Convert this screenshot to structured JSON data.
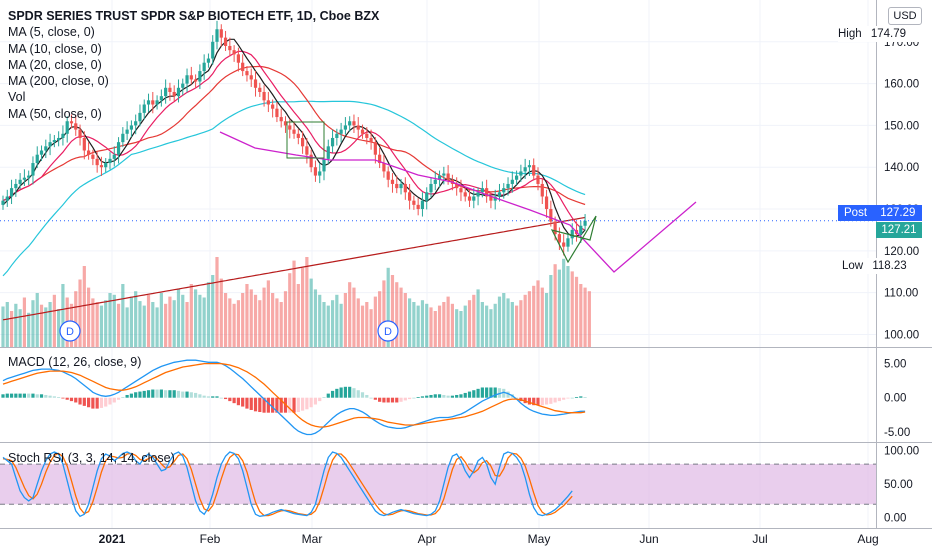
{
  "header": {
    "title": "SPDR SERIES TRUST SPDR S&P BIOTECH ETF, 1D, Cboe BZX",
    "indicators": [
      "MA (5, close, 0)",
      "MA (10, close, 0)",
      "MA (20, close, 0)",
      "MA (200, close, 0)",
      "Vol",
      "MA (50, close, 0)"
    ]
  },
  "currency_button": "USD",
  "macd_label": "MACD (12, 26, close, 9)",
  "stoch_label": "Stoch RSI (3, 3, 14, 14, close)",
  "badges": {
    "high": {
      "label": "High",
      "value": "174.79"
    },
    "post": {
      "label": "Post",
      "value": "127.29"
    },
    "last": {
      "value": "127.21"
    },
    "low": {
      "label": "Low",
      "value": "118.23"
    }
  },
  "colors": {
    "up": "#26a69a",
    "down": "#ef5350",
    "ma5": "#1e1e1e",
    "ma10": "#e91e63",
    "ma20": "#e53935",
    "ma200": "#b71c1c",
    "ma50": "#26c6da",
    "pattern_line": "#cc22cc",
    "pattern_triangle": "#2e7d32",
    "macd": "#2196f3",
    "signal": "#ff6d00",
    "stoch_k": "#2196f3",
    "stoch_d": "#ff6d00",
    "stoch_band": "#e1bee7",
    "post": "#2962ff"
  },
  "chart_data": [
    {
      "type": "candlestick",
      "title": "SPDR SERIES TRUST SPDR S&P BIOTECH ETF, 1D, Cboe BZX",
      "x_ticks": [
        "2021",
        "Feb",
        "Mar",
        "Apr",
        "May",
        "Jun",
        "Jul",
        "Aug"
      ],
      "y_ticks": [
        100,
        110,
        120,
        130,
        140,
        150,
        160,
        170
      ],
      "ylim": [
        97,
        180
      ],
      "high": 174.79,
      "low": 118.23,
      "last": 127.21,
      "post": 127.29,
      "dividend_markers": [
        "D",
        "D"
      ],
      "close": [
        132,
        133,
        135,
        136,
        137,
        137.5,
        138,
        141,
        143,
        144,
        145,
        146,
        146.5,
        147,
        148,
        151,
        150.5,
        149,
        147,
        144,
        143,
        142,
        140.5,
        140,
        141,
        142,
        143,
        146,
        148,
        149,
        150,
        151,
        153,
        155,
        156,
        155,
        156,
        157,
        159,
        158,
        157,
        159,
        160,
        162,
        161,
        160.5,
        163,
        165,
        166,
        170,
        173,
        171,
        169,
        168,
        167,
        165,
        163,
        162,
        161,
        159,
        158,
        156,
        155,
        154,
        152,
        151,
        150,
        149,
        148,
        147,
        145,
        143,
        140,
        138,
        139,
        142,
        145,
        147,
        148,
        149,
        150,
        151,
        150,
        149,
        148,
        147,
        146,
        143,
        141,
        139,
        137,
        136,
        135,
        136,
        134,
        132,
        131,
        130,
        132,
        134,
        136,
        137,
        138,
        138.5,
        137,
        136,
        135,
        134,
        133,
        132,
        133,
        134,
        135,
        133,
        132,
        133,
        134,
        135,
        136,
        137,
        138,
        139,
        140,
        140.5,
        138,
        136,
        133,
        130,
        127,
        124,
        122,
        121,
        123,
        125,
        124,
        126,
        127.2
      ],
      "ma5": [
        131,
        132,
        133,
        134,
        135.5,
        136.5,
        137.3,
        138.5,
        140.5,
        142,
        143.5,
        145,
        145.8,
        146.5,
        147.2,
        148.6,
        149.6,
        149.7,
        149.3,
        147.9,
        146.3,
        144.7,
        142.9,
        141.4,
        141,
        141.3,
        141.5,
        142.4,
        143.9,
        145.4,
        147.2,
        148.8,
        150.2,
        151.6,
        153,
        154,
        155,
        155.8,
        156.6,
        157,
        157,
        157.8,
        158.6,
        159.2,
        159.8,
        160.9,
        161.4,
        162.4,
        163.1,
        164.9,
        167.4,
        169,
        170,
        170.6,
        170.6,
        169.2,
        167.6,
        166,
        164.6,
        163,
        161.6,
        160,
        158.8,
        157.4,
        155.8,
        154.4,
        153.2,
        151.6,
        150.6,
        149.4,
        148.2,
        146.4,
        144.6,
        142.6,
        141,
        140.4,
        140.8,
        141.8,
        143.6,
        145.6,
        147.4,
        148.8,
        149.6,
        149.8,
        149.6,
        149,
        148,
        146.6,
        145,
        143.2,
        141.2,
        139.2,
        137.6,
        136.6,
        135.6,
        134.6,
        133.6,
        132.8,
        132.2,
        131.8,
        132.6,
        133.8,
        135.4,
        136.8,
        137.3,
        137.1,
        136.7,
        136.1,
        135,
        134,
        133.5,
        133.6,
        133.4,
        133.2,
        133.4,
        133.4,
        133,
        133.2,
        133.8,
        134.8,
        135.8,
        137,
        138,
        138.9,
        139.2,
        139,
        138,
        136.3,
        133.6,
        130.4,
        127.9,
        125.6,
        124.2,
        123.4,
        123.6,
        123.8,
        125.0
      ]
    },
    {
      "type": "bar",
      "title": "Vol",
      "values": [
        45,
        50,
        40,
        48,
        42,
        55,
        38,
        52,
        60,
        47,
        44,
        50,
        58,
        42,
        70,
        55,
        48,
        62,
        75,
        90,
        66,
        54,
        50,
        46,
        52,
        60,
        58,
        48,
        70,
        44,
        56,
        62,
        51,
        46,
        58,
        50,
        44,
        60,
        48,
        56,
        52,
        65,
        58,
        50,
        70,
        64,
        58,
        55,
        72,
        80,
        100,
        76,
        60,
        54,
        48,
        52,
        60,
        70,
        64,
        58,
        52,
        66,
        74,
        60,
        54,
        50,
        62,
        82,
        96,
        70,
        88,
        100,
        76,
        64,
        58,
        50,
        46,
        52,
        58,
        48,
        60,
        72,
        66,
        54,
        46,
        50,
        42,
        56,
        62,
        74,
        88,
        80,
        72,
        66,
        60,
        54,
        50,
        46,
        52,
        48,
        44,
        40,
        46,
        50,
        56,
        48,
        42,
        40,
        46,
        52,
        58,
        64,
        50,
        46,
        42,
        48,
        56,
        60,
        54,
        50,
        46,
        52,
        58,
        62,
        68,
        74,
        66,
        60,
        80,
        92,
        86,
        98,
        90,
        84,
        78,
        70,
        66,
        62
      ],
      "up": [
        true,
        true,
        false,
        true,
        true,
        false,
        true,
        true,
        true,
        false,
        true,
        true,
        false,
        true,
        true,
        false,
        false,
        false,
        false,
        false,
        false,
        false,
        false,
        true,
        true,
        true,
        true,
        false,
        true,
        true,
        true,
        true,
        true,
        true,
        false,
        true,
        true,
        true,
        false,
        false,
        true,
        true,
        true,
        false,
        false,
        true,
        true,
        true,
        true,
        true,
        false,
        false,
        false,
        false,
        false,
        false,
        false,
        false,
        false,
        false,
        false,
        false,
        false,
        false,
        false,
        false,
        false,
        false,
        false,
        false,
        false,
        false,
        true,
        true,
        true,
        true,
        true,
        true,
        true,
        true,
        false,
        false,
        false,
        false,
        false,
        false,
        false,
        false,
        false,
        false,
        true,
        false,
        false,
        false,
        false,
        true,
        true,
        true,
        true,
        true,
        false,
        false,
        false,
        false,
        false,
        false,
        true,
        true,
        true,
        false,
        false,
        true,
        true,
        true,
        true,
        true,
        true,
        true,
        true,
        true,
        false,
        false,
        false,
        false,
        false,
        false,
        false,
        true,
        true,
        false,
        true,
        true,
        true,
        false
      ]
    },
    {
      "type": "line",
      "title": "MACD (12, 26, close, 9)",
      "y_ticks": [
        5,
        0,
        -5
      ],
      "ylim": [
        -6.5,
        7
      ],
      "series": [
        {
          "name": "MACD",
          "values": [
            2.5,
            2.8,
            3,
            3.2,
            3.4,
            3.6,
            3.8,
            4,
            4.1,
            4.2,
            4.2,
            4.2,
            4.1,
            4.0,
            3.8,
            3.5,
            3.2,
            2.8,
            2.3,
            1.8,
            1.3,
            0.8,
            0.5,
            0.3,
            0.2,
            0.3,
            0.5,
            0.8,
            1.2,
            1.6,
            2,
            2.4,
            2.8,
            3.2,
            3.6,
            4,
            4.3,
            4.6,
            4.8,
            5,
            5.2,
            5.3,
            5.4,
            5.5,
            5.5,
            5.5,
            5.4,
            5.3,
            5.2,
            5.2,
            5.2,
            5,
            4.7,
            4.3,
            3.8,
            3.3,
            2.8,
            2.2,
            1.6,
            1,
            0.4,
            -0.2,
            -0.8,
            -1.4,
            -2,
            -2.6,
            -3.2,
            -3.8,
            -4.4,
            -4.9,
            -5.2,
            -5.4,
            -5.4,
            -5.2,
            -4.8,
            -4.2,
            -3.6,
            -3,
            -2.5,
            -2.1,
            -1.8,
            -1.6,
            -1.6,
            -1.8,
            -2.1,
            -2.5,
            -3,
            -3.4,
            -3.8,
            -4.1,
            -4.3,
            -4.4,
            -4.5,
            -4.5,
            -4.4,
            -4.2,
            -4,
            -3.8,
            -3.6,
            -3.4,
            -3.2,
            -3,
            -2.9,
            -2.9,
            -2.9,
            -2.8,
            -2.6,
            -2.4,
            -2.1,
            -1.7,
            -1.3,
            -0.9,
            -0.5,
            -0.2,
            0.1,
            0.4,
            0.6,
            0.8,
            0.6,
            0.3,
            -0.2,
            -0.8,
            -1.3,
            -1.7,
            -2.0,
            -2.2,
            -2.4,
            -2.5,
            -2.6,
            -2.6,
            -2.5,
            -2.4,
            -2.3,
            -2.2,
            -2.1,
            -2.0,
            -2.0
          ]
        },
        {
          "name": "Signal",
          "values": [
            2.0,
            2.2,
            2.4,
            2.6,
            2.8,
            3.0,
            3.2,
            3.4,
            3.6,
            3.7,
            3.8,
            3.9,
            3.9,
            3.9,
            3.9,
            3.8,
            3.7,
            3.5,
            3.3,
            3.0,
            2.7,
            2.4,
            2.1,
            1.8,
            1.5,
            1.3,
            1.2,
            1.1,
            1.1,
            1.2,
            1.4,
            1.6,
            1.9,
            2.2,
            2.5,
            2.8,
            3.1,
            3.4,
            3.7,
            3.9,
            4.1,
            4.3,
            4.5,
            4.6,
            4.7,
            4.8,
            4.9,
            5.0,
            5.0,
            5.0,
            5.0,
            5.0,
            4.9,
            4.8,
            4.6,
            4.4,
            4.1,
            3.8,
            3.4,
            3.0,
            2.5,
            2.0,
            1.4,
            0.8,
            0.2,
            -0.4,
            -1.0,
            -1.6,
            -2.2,
            -2.8,
            -3.3,
            -3.7,
            -4.0,
            -4.2,
            -4.3,
            -4.3,
            -4.2,
            -4.0,
            -3.8,
            -3.6,
            -3.4,
            -3.2,
            -3.0,
            -2.9,
            -2.9,
            -2.9,
            -3.0,
            -3.1,
            -3.2,
            -3.4,
            -3.6,
            -3.7,
            -3.8,
            -3.9,
            -4.0,
            -4.0,
            -4.0,
            -3.9,
            -3.8,
            -3.7,
            -3.6,
            -3.5,
            -3.4,
            -3.3,
            -3.2,
            -3.1,
            -3.0,
            -2.9,
            -2.8,
            -2.6,
            -2.4,
            -2.2,
            -2.0,
            -1.7,
            -1.4,
            -1.1,
            -0.8,
            -0.5,
            -0.3,
            -0.2,
            -0.2,
            -0.3,
            -0.5,
            -0.7,
            -0.9,
            -1.1,
            -1.3,
            -1.5,
            -1.7,
            -1.9,
            -2.0,
            -2.1,
            -2.2,
            -2.2,
            -2.2,
            -2.2,
            -2.1
          ]
        }
      ]
    },
    {
      "type": "line",
      "title": "Stoch RSI (3, 3, 14, 14, close)",
      "y_ticks": [
        100,
        50,
        0
      ],
      "band": [
        20,
        80
      ],
      "ylim": [
        -8,
        110
      ],
      "series": [
        {
          "name": "K",
          "values": [
            90,
            85,
            80,
            60,
            40,
            30,
            25,
            30,
            50,
            70,
            85,
            95,
            98,
            95,
            80,
            55,
            30,
            10,
            2,
            5,
            20,
            45,
            70,
            88,
            95,
            92,
            85,
            90,
            96,
            98,
            95,
            85,
            80,
            90,
            95,
            90,
            80,
            70,
            72,
            85,
            95,
            98,
            92,
            75,
            50,
            25,
            10,
            5,
            15,
            35,
            60,
            80,
            92,
            98,
            96,
            88,
            70,
            45,
            20,
            5,
            2,
            3,
            5,
            8,
            10,
            12,
            10,
            8,
            6,
            5,
            4,
            3,
            8,
            20,
            45,
            70,
            90,
            98,
            96,
            90,
            80,
            70,
            60,
            50,
            40,
            30,
            20,
            10,
            5,
            3,
            5,
            8,
            10,
            12,
            10,
            8,
            6,
            5,
            4,
            3,
            5,
            10,
            25,
            50,
            75,
            92,
            95,
            85,
            70,
            60,
            70,
            85,
            90,
            80,
            60,
            50,
            75,
            95,
            98,
            96,
            90,
            80,
            60,
            35,
            15,
            5,
            3,
            5,
            8,
            12,
            18,
            25,
            32,
            40
          ]
        },
        {
          "name": "D",
          "values": [
            88,
            87,
            85,
            75,
            60,
            45,
            33,
            28,
            35,
            50,
            68,
            83,
            93,
            96,
            91,
            77,
            55,
            32,
            14,
            6,
            9,
            24,
            45,
            68,
            85,
            92,
            91,
            89,
            90,
            95,
            96,
            93,
            87,
            85,
            88,
            92,
            88,
            80,
            74,
            76,
            84,
            93,
            95,
            88,
            72,
            50,
            28,
            13,
            10,
            18,
            37,
            58,
            77,
            90,
            95,
            94,
            85,
            68,
            45,
            23,
            9,
            3,
            3,
            5,
            8,
            10,
            11,
            10,
            8,
            6,
            5,
            4,
            5,
            10,
            24,
            45,
            68,
            86,
            95,
            95,
            89,
            80,
            70,
            60,
            50,
            40,
            30,
            20,
            12,
            6,
            4,
            5,
            8,
            10,
            11,
            10,
            8,
            6,
            5,
            4,
            4,
            6,
            13,
            28,
            50,
            72,
            87,
            91,
            83,
            72,
            67,
            72,
            82,
            85,
            77,
            63,
            62,
            73,
            89,
            96,
            95,
            89,
            77,
            58,
            37,
            18,
            8,
            4,
            5,
            8,
            13,
            18,
            25,
            32
          ]
        }
      ]
    }
  ]
}
